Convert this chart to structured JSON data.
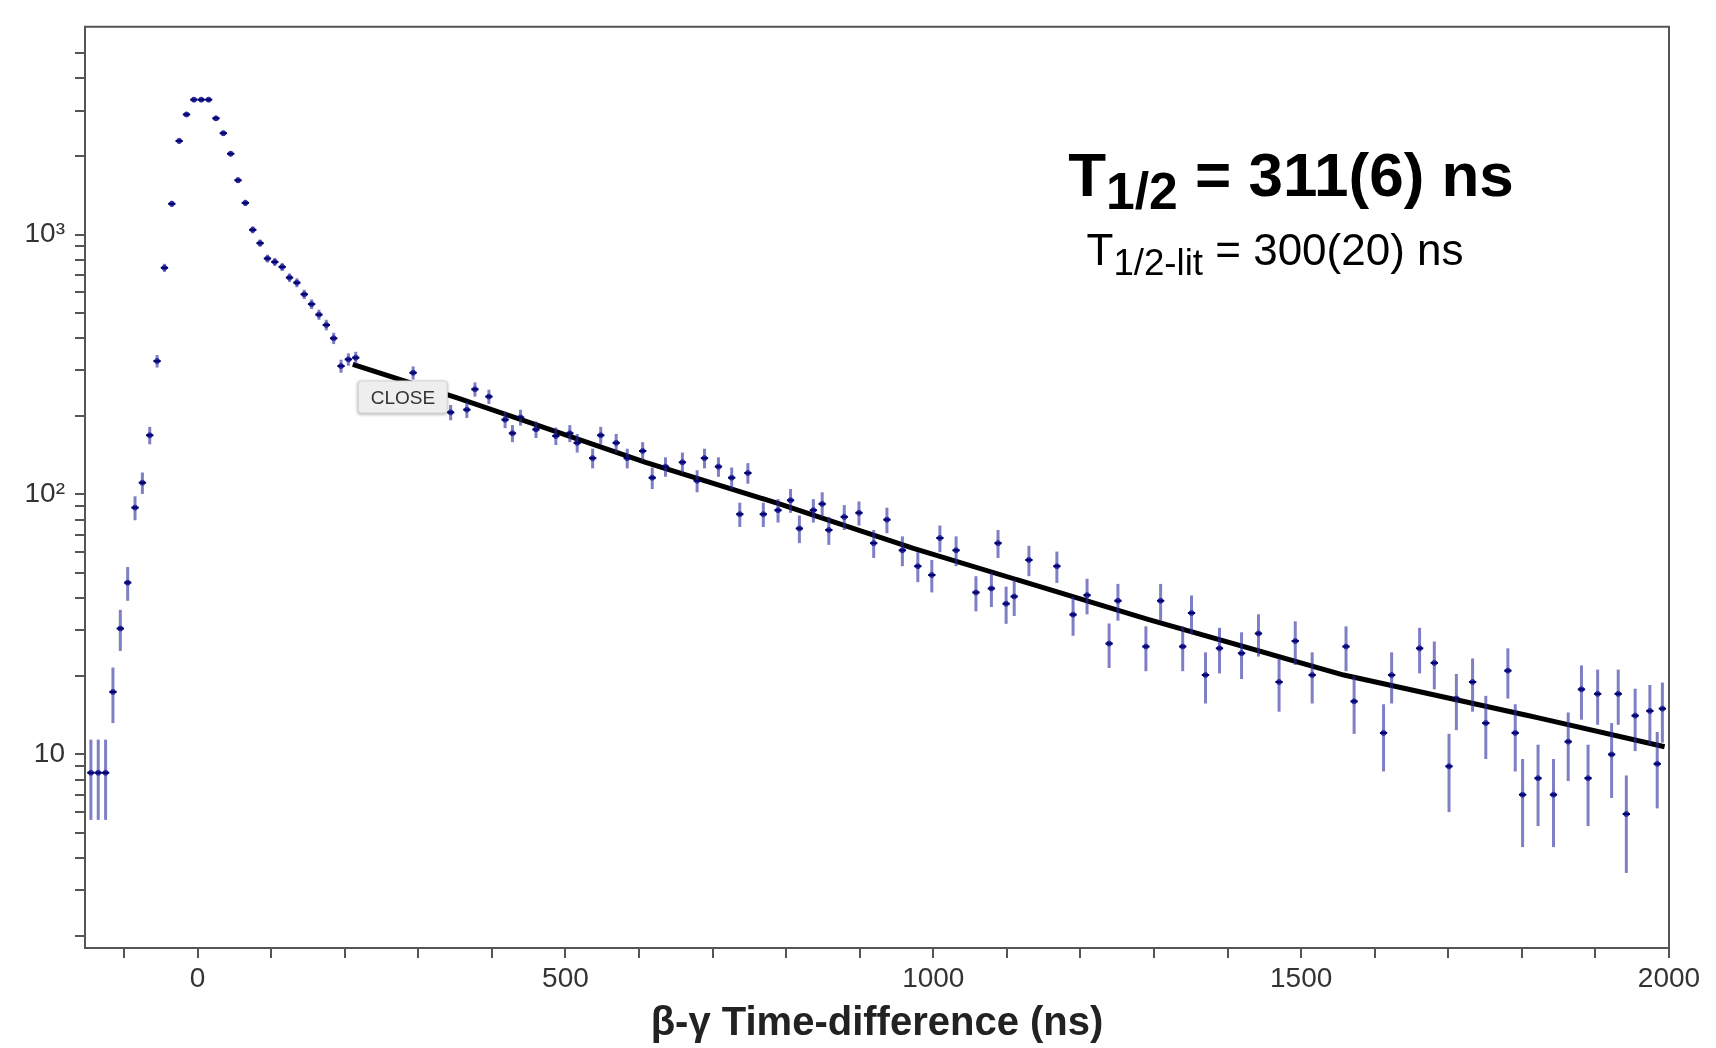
{
  "chart_data": {
    "type": "scatter",
    "xlabel": "β-γ Time-difference (ns)",
    "annotations": [
      "T$_{1/2}$ = 311(6) ns",
      "T$_{1/2-lit}$ = 300(20) ns",
      "CLOSE"
    ],
    "xlim": [
      -153,
      2000
    ],
    "xticks": [
      {
        "value": -100,
        "label": null
      },
      0,
      {
        "value": 100,
        "label": null
      },
      {
        "value": 200,
        "label": null
      },
      {
        "value": 300,
        "label": null
      },
      {
        "value": 400,
        "label": null
      },
      500,
      {
        "value": 600,
        "label": null
      },
      {
        "value": 700,
        "label": null
      },
      {
        "value": 800,
        "label": null
      },
      {
        "value": 900,
        "label": null
      },
      1000,
      {
        "value": 1100,
        "label": null
      },
      {
        "value": 1200,
        "label": null
      },
      {
        "value": 1300,
        "label": null
      },
      {
        "value": 1400,
        "label": null
      },
      1500,
      {
        "value": 1600,
        "label": null
      },
      {
        "value": 1700,
        "label": null
      },
      {
        "value": 1800,
        "label": null
      },
      {
        "value": 1900,
        "label": null
      },
      2000
    ],
    "ylim": [
      1.8,
      6300
    ],
    "yticks": [
      {
        "value": 2,
        "label": null
      },
      {
        "value": 3,
        "label": null
      },
      {
        "value": 4,
        "label": null
      },
      {
        "value": 5,
        "label": null
      },
      {
        "value": 6,
        "label": null
      },
      {
        "value": 7,
        "label": null
      },
      {
        "value": 8,
        "label": null
      },
      {
        "value": 9,
        "label": null
      },
      10,
      {
        "value": 20,
        "label": null
      },
      {
        "value": 30,
        "label": null
      },
      {
        "value": 40,
        "label": null
      },
      {
        "value": 50,
        "label": null
      },
      {
        "value": 60,
        "label": null
      },
      {
        "value": 70,
        "label": null
      },
      {
        "value": 80,
        "label": null
      },
      {
        "value": 90,
        "label": null
      },
      {
        "value": 100,
        "label": "10²"
      },
      {
        "value": 200,
        "label": null
      },
      {
        "value": 300,
        "label": null
      },
      {
        "value": 400,
        "label": null
      },
      {
        "value": 500,
        "label": null
      },
      {
        "value": 600,
        "label": null
      },
      {
        "value": 700,
        "label": null
      },
      {
        "value": 800,
        "label": null
      },
      {
        "value": 900,
        "label": null
      },
      {
        "value": 1000,
        "label": "10³"
      },
      {
        "value": 2000,
        "label": null
      },
      {
        "value": 3000,
        "label": null
      },
      {
        "value": 4000,
        "label": null
      },
      {
        "value": 5000,
        "label": null
      }
    ],
    "log": "y",
    "grid": false,
    "legend": false,
    "marker": "circle",
    "series": [
      {
        "color": "#2a2a9e",
        "x": [
          -145,
          -135,
          -125,
          -115,
          -105,
          -95,
          -85,
          -75,
          -65,
          -55,
          -45,
          -35,
          -25,
          -15,
          -5,
          5,
          15,
          25,
          35,
          45,
          55,
          65,
          75,
          85,
          95,
          105,
          115,
          125,
          135,
          145,
          155,
          165,
          175,
          185,
          195,
          205,
          215,
          293,
          344,
          366,
          377,
          396,
          418,
          428,
          439,
          460,
          487,
          506,
          516,
          537,
          548,
          569,
          584,
          605,
          618,
          636,
          659,
          679,
          689,
          708,
          726,
          737,
          748,
          769,
          789,
          806,
          818,
          837,
          849,
          858,
          879,
          899,
          919,
          937,
          958,
          979,
          998,
          1009,
          1031,
          1058,
          1079,
          1088,
          1099,
          1110,
          1130,
          1168,
          1190,
          1209,
          1239,
          1251,
          1289,
          1309,
          1339,
          1351,
          1370,
          1389,
          1419,
          1442,
          1470,
          1492,
          1515,
          1561,
          1572,
          1612,
          1623,
          1661,
          1681,
          1701,
          1711,
          1733,
          1751,
          1781,
          1791,
          1801,
          1822,
          1843,
          1863,
          1881,
          1890,
          1903,
          1922,
          1931,
          1942,
          1954,
          1974,
          1984,
          1991
        ],
        "values": [
          8.5,
          8.5,
          8.5,
          17.4,
          30.5,
          45.8,
          89,
          111,
          169,
          326,
          745,
          1313,
          2292,
          2897,
          3304,
          3304,
          3304,
          2800,
          2455,
          2046,
          1618,
          1324,
          1043,
          927,
          809,
          785,
          751,
          683,
          653,
          589,
          540,
          492,
          449,
          399,
          312,
          331,
          336,
          294,
          207,
          212,
          254,
          238,
          194,
          172,
          198,
          178,
          168,
          172,
          158,
          138,
          169,
          158,
          138,
          147,
          116,
          128,
          133,
          113,
          138,
          128,
          116,
          84,
          121,
          84,
          87,
          95,
          74,
          87,
          92,
          73,
          82,
          85,
          65,
          80,
          61,
          53,
          49,
          68,
          61,
          42,
          43.5,
          65,
          38,
          40.5,
          56,
          53,
          34.5,
          41,
          26.7,
          39,
          26,
          39,
          26,
          35,
          20.2,
          25.6,
          24.5,
          29.2,
          19,
          27.3,
          20.2,
          26,
          16,
          12.1,
          20.2,
          25.6,
          22.5,
          9,
          16.4,
          19,
          13.2,
          21,
          12.1,
          7,
          8.1,
          7,
          11.2,
          17.8,
          8.1,
          17.1,
          10,
          17.1,
          5.9,
          14.1,
          14.7,
          9.2,
          15
        ],
        "errors": [
          2.9,
          2.9,
          2.9,
          4.2,
          5.5,
          6.8,
          9.4,
          10.5,
          13,
          18,
          27,
          36,
          48,
          54,
          57,
          57,
          57,
          53,
          50,
          45,
          40,
          36,
          32,
          30,
          28,
          28,
          27,
          26,
          26,
          24,
          23,
          22,
          21,
          20,
          18,
          18,
          18,
          17,
          14,
          15,
          16,
          15,
          14,
          13,
          14,
          13,
          13,
          13,
          13,
          12,
          13,
          13,
          12,
          12,
          11,
          11,
          12,
          11,
          12,
          11,
          11,
          9,
          11,
          9,
          9,
          10,
          9,
          9,
          10,
          9,
          9,
          9,
          8,
          9,
          8,
          7,
          7,
          8,
          8,
          6.5,
          6.6,
          8,
          6.2,
          6.4,
          7.5,
          7.3,
          5.9,
          6.4,
          5.2,
          6.3,
          5.1,
          6.3,
          5.1,
          5.9,
          4.5,
          5.1,
          5,
          5.4,
          4.4,
          5.2,
          4.5,
          5.1,
          4,
          3.5,
          4.5,
          5.1,
          4.7,
          3,
          4,
          4.4,
          3.6,
          4.6,
          3.5,
          2.6,
          2.8,
          2.6,
          3.3,
          4.2,
          2.8,
          4.1,
          3.2,
          4.1,
          2.4,
          3.8,
          3.8,
          3,
          3.9
        ],
        "xerrors": [
          5,
          5,
          5,
          5,
          5,
          5,
          5,
          5,
          5,
          5,
          5,
          5,
          5,
          5,
          5,
          5,
          5,
          5,
          5,
          5,
          5,
          5,
          5,
          5,
          5,
          5,
          5,
          5,
          5,
          5,
          5,
          5,
          5,
          5,
          5,
          5,
          5,
          5,
          5,
          5,
          5,
          5,
          5,
          5,
          5,
          5,
          5,
          5,
          5,
          5,
          5,
          5,
          5,
          5,
          5,
          5,
          5,
          5,
          5,
          5,
          5,
          5,
          5,
          5,
          5,
          5,
          5,
          5,
          5,
          5,
          5,
          5,
          5,
          5,
          5,
          5,
          5,
          5,
          5,
          5,
          5,
          5,
          5,
          5,
          5,
          5,
          5,
          5,
          5,
          5,
          5,
          5,
          5,
          5,
          5,
          5,
          5,
          5,
          5,
          5,
          5,
          5,
          5,
          5,
          5,
          5,
          5,
          5,
          5,
          5,
          5,
          5,
          5,
          5,
          5,
          5,
          5,
          5,
          5,
          5,
          5,
          5,
          5,
          5,
          5,
          5,
          5
        ]
      },
      {
        "type": "line",
        "color": "#000000",
        "marker": "none",
        "line_style": "solid",
        "x": [
          211,
          354,
          609,
          791,
          973,
          1136,
          1293,
          1558,
          1824,
          1994
        ],
        "values": [
          317,
          235,
          133,
          92,
          62,
          45,
          33,
          20.2,
          13.8,
          10.7
        ]
      }
    ]
  }
}
